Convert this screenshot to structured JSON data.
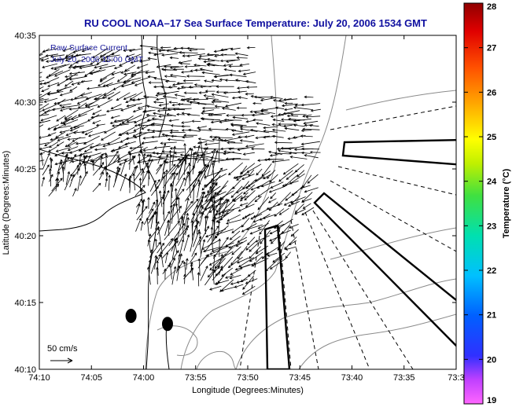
{
  "chart_data": {
    "type": "vector-field-map",
    "title": "RU COOL  NOAA–17  Sea Surface Temperature:  July 20, 2006 1534 GMT",
    "xlabel": "Longitude (Degrees:Minutes)",
    "ylabel": "Latitude (Degrees:Minutes)",
    "x_ticks": [
      "74:10",
      "74:05",
      "74:00",
      "73:55",
      "73:50",
      "73:45",
      "73:40",
      "73:35",
      "73:3"
    ],
    "x_tick_minutes": [
      0,
      5,
      10,
      15,
      20,
      25,
      30,
      35,
      40
    ],
    "y_ticks": [
      "40:10",
      "40:15",
      "40:20",
      "40:25",
      "40:30",
      "40:35"
    ],
    "y_tick_minutes": [
      10,
      15,
      20,
      25,
      30,
      35
    ],
    "annotations": [
      "Raw Surface Current",
      "July 20, 2006 15:00 GMT"
    ],
    "scale_label": "50 cm/s",
    "colorbar": {
      "label": "Temperature (°C)",
      "min": 19,
      "max": 28,
      "ticks": [
        "19",
        "20",
        "21",
        "22",
        "23",
        "24",
        "25",
        "26",
        "27",
        "28"
      ]
    },
    "markers": [
      {
        "lon_min": 8.8,
        "lat_min": 14.0
      },
      {
        "lon_min": 12.3,
        "lat_min": 13.4
      }
    ]
  },
  "colors": {
    "title": "#1010a0",
    "annotation": "#1a1a9c",
    "coast": "#000000",
    "contour": "#888888",
    "vectors": "#000000"
  }
}
